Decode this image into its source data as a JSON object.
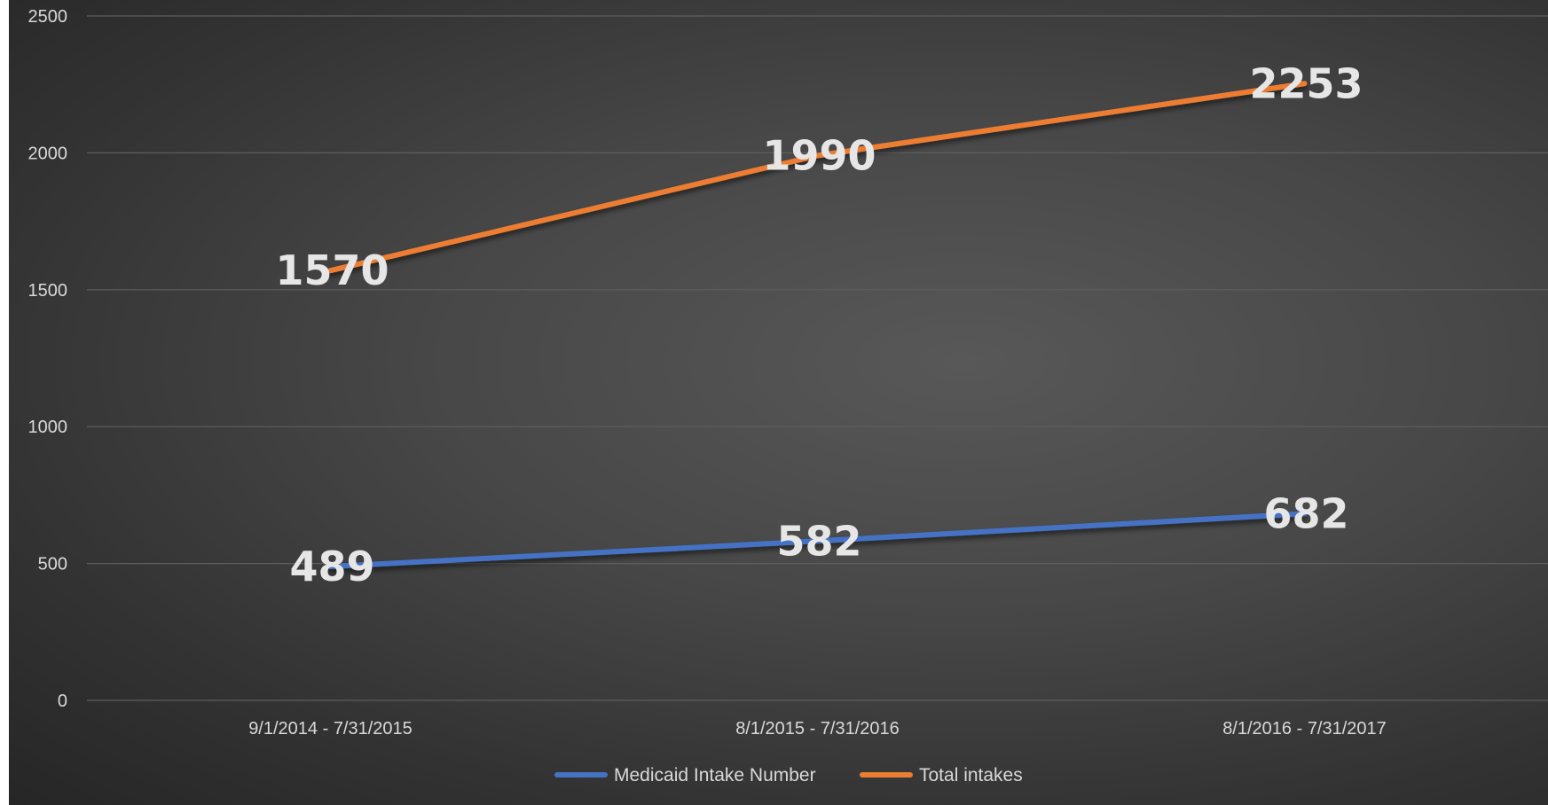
{
  "chart_data": {
    "type": "line",
    "categories": [
      "9/1/2014 - 7/31/2015",
      "8/1/2015 - 7/31/2016",
      "8/1/2016 - 7/31/2017"
    ],
    "series": [
      {
        "name": "Medicaid Intake Number",
        "values": [
          489,
          582,
          682
        ],
        "color": "#4472c4"
      },
      {
        "name": "Total intakes",
        "values": [
          1570,
          1990,
          2253
        ],
        "color": "#ed7d31"
      }
    ],
    "yticks": [
      "0",
      "500",
      "1000",
      "1500",
      "2000",
      "2500"
    ],
    "ylim": [
      0,
      2500
    ],
    "grid": true,
    "legend_position": "bottom"
  }
}
